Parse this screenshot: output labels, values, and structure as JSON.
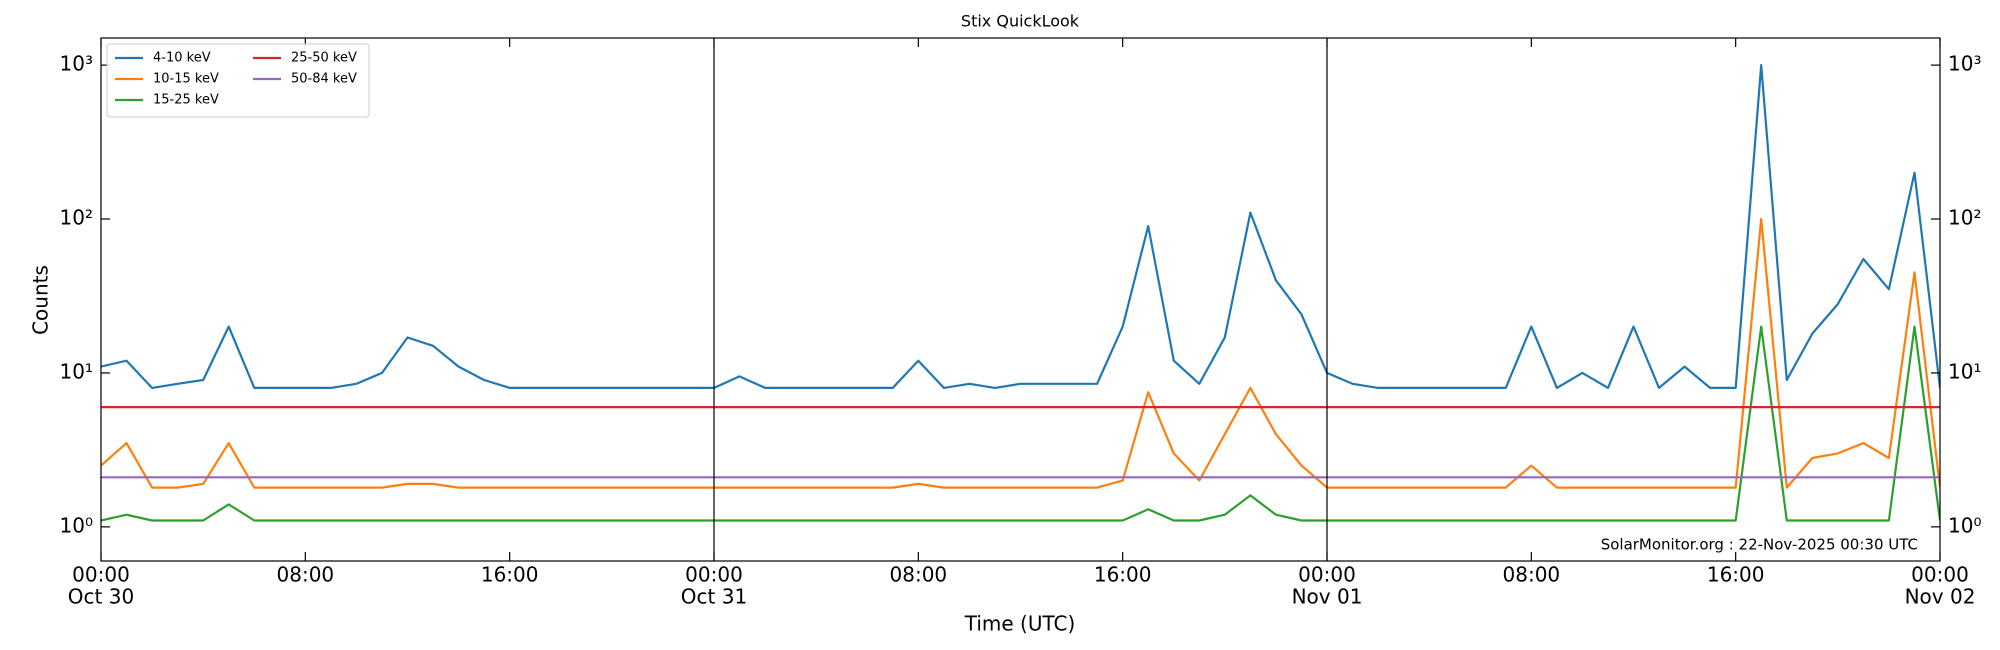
{
  "chart_data": {
    "type": "line",
    "title": "Stix QuickLook",
    "xlabel": "Time (UTC)",
    "ylabel": "Counts",
    "annotation": "SolarMonitor.org : 22-Nov-2025 00:30 UTC",
    "log_y": true,
    "grid": false,
    "legend_loc": "upper-left",
    "xlim": [
      0,
      72
    ],
    "ylim": [
      0.6,
      1500
    ],
    "xticks": [
      {
        "value": 0,
        "label": "00:00"
      },
      {
        "value": 8,
        "label": "08:00"
      },
      {
        "value": 16,
        "label": "16:00"
      },
      {
        "value": 24,
        "label": "00:00"
      },
      {
        "value": 32,
        "label": "08:00"
      },
      {
        "value": 40,
        "label": "16:00"
      },
      {
        "value": 48,
        "label": "00:00"
      },
      {
        "value": 56,
        "label": "08:00"
      },
      {
        "value": 64,
        "label": "16:00"
      },
      {
        "value": 72,
        "label": "00:00"
      }
    ],
    "xtick_dates": [
      {
        "value": 0,
        "label": "Oct 30"
      },
      {
        "value": 24,
        "label": "Oct 31"
      },
      {
        "value": 48,
        "label": "Nov 01"
      },
      {
        "value": 72,
        "label": "Nov 02"
      }
    ],
    "day_lines": [
      24,
      48
    ],
    "yticks": [
      {
        "value": 1,
        "label": "10⁰"
      },
      {
        "value": 10,
        "label": "10¹"
      },
      {
        "value": 100,
        "label": "10²"
      },
      {
        "value": 1000,
        "label": "10³"
      }
    ],
    "x": [
      0,
      1,
      2,
      3,
      4,
      5,
      6,
      7,
      8,
      9,
      10,
      11,
      12,
      13,
      14,
      15,
      16,
      17,
      18,
      19,
      20,
      21,
      22,
      23,
      24,
      25,
      26,
      27,
      28,
      29,
      30,
      31,
      32,
      33,
      34,
      35,
      36,
      37,
      38,
      39,
      40,
      41,
      42,
      43,
      44,
      45,
      46,
      47,
      48,
      49,
      50,
      51,
      52,
      53,
      54,
      55,
      56,
      57,
      58,
      59,
      60,
      61,
      62,
      63,
      64,
      65,
      66,
      67,
      68,
      69,
      70,
      71,
      72
    ],
    "series": [
      {
        "name": "4-10 keV",
        "color": "#1f77b4",
        "values": [
          11,
          12,
          8,
          8.5,
          9,
          20,
          8,
          8,
          8,
          8,
          8.5,
          10,
          17,
          15,
          11,
          9,
          8,
          8,
          8,
          8,
          8,
          8,
          8,
          8,
          8,
          9.5,
          8,
          8,
          8,
          8,
          8,
          8,
          12,
          8,
          8.5,
          8,
          8.5,
          8.5,
          8.5,
          8.5,
          20,
          90,
          12,
          8.5,
          17,
          110,
          40,
          24,
          10,
          8.5,
          8,
          8,
          8,
          8,
          8,
          8,
          20,
          8,
          10,
          8,
          20,
          8,
          11,
          8,
          8,
          1000,
          9,
          18,
          28,
          55,
          35,
          200,
          8
        ]
      },
      {
        "name": "10-15 keV",
        "color": "#ff7f0e",
        "values": [
          2.5,
          3.5,
          1.8,
          1.8,
          1.9,
          3.5,
          1.8,
          1.8,
          1.8,
          1.8,
          1.8,
          1.8,
          1.9,
          1.9,
          1.8,
          1.8,
          1.8,
          1.8,
          1.8,
          1.8,
          1.8,
          1.8,
          1.8,
          1.8,
          1.8,
          1.8,
          1.8,
          1.8,
          1.8,
          1.8,
          1.8,
          1.8,
          1.9,
          1.8,
          1.8,
          1.8,
          1.8,
          1.8,
          1.8,
          1.8,
          2,
          7.5,
          3,
          2,
          4,
          8,
          4,
          2.5,
          1.8,
          1.8,
          1.8,
          1.8,
          1.8,
          1.8,
          1.8,
          1.8,
          2.5,
          1.8,
          1.8,
          1.8,
          1.8,
          1.8,
          1.8,
          1.8,
          1.8,
          100,
          1.8,
          2.8,
          3,
          3.5,
          2.8,
          45,
          1.8
        ]
      },
      {
        "name": "15-25 keV",
        "color": "#2ca02c",
        "values": [
          1.1,
          1.2,
          1.1,
          1.1,
          1.1,
          1.4,
          1.1,
          1.1,
          1.1,
          1.1,
          1.1,
          1.1,
          1.1,
          1.1,
          1.1,
          1.1,
          1.1,
          1.1,
          1.1,
          1.1,
          1.1,
          1.1,
          1.1,
          1.1,
          1.1,
          1.1,
          1.1,
          1.1,
          1.1,
          1.1,
          1.1,
          1.1,
          1.1,
          1.1,
          1.1,
          1.1,
          1.1,
          1.1,
          1.1,
          1.1,
          1.1,
          1.3,
          1.1,
          1.1,
          1.2,
          1.6,
          1.2,
          1.1,
          1.1,
          1.1,
          1.1,
          1.1,
          1.1,
          1.1,
          1.1,
          1.1,
          1.1,
          1.1,
          1.1,
          1.1,
          1.1,
          1.1,
          1.1,
          1.1,
          1.1,
          20,
          1.1,
          1.1,
          1.1,
          1.1,
          1.1,
          20,
          1.1
        ]
      },
      {
        "name": "25-50 keV",
        "color": "#d62728",
        "values": [
          6,
          6,
          6,
          6,
          6,
          6,
          6,
          6,
          6,
          6,
          6,
          6,
          6,
          6,
          6,
          6,
          6,
          6,
          6,
          6,
          6,
          6,
          6,
          6,
          6,
          6,
          6,
          6,
          6,
          6,
          6,
          6,
          6,
          6,
          6,
          6,
          6,
          6,
          6,
          6,
          6,
          6,
          6,
          6,
          6,
          6,
          6,
          6,
          6,
          6,
          6,
          6,
          6,
          6,
          6,
          6,
          6,
          6,
          6,
          6,
          6,
          6,
          6,
          6,
          6,
          6,
          6,
          6,
          6,
          6,
          6,
          6,
          6
        ]
      },
      {
        "name": "50-84 keV",
        "color": "#9467bd",
        "values": [
          2.1,
          2.1,
          2.1,
          2.1,
          2.1,
          2.1,
          2.1,
          2.1,
          2.1,
          2.1,
          2.1,
          2.1,
          2.1,
          2.1,
          2.1,
          2.1,
          2.1,
          2.1,
          2.1,
          2.1,
          2.1,
          2.1,
          2.1,
          2.1,
          2.1,
          2.1,
          2.1,
          2.1,
          2.1,
          2.1,
          2.1,
          2.1,
          2.1,
          2.1,
          2.1,
          2.1,
          2.1,
          2.1,
          2.1,
          2.1,
          2.1,
          2.1,
          2.1,
          2.1,
          2.1,
          2.1,
          2.1,
          2.1,
          2.1,
          2.1,
          2.1,
          2.1,
          2.1,
          2.1,
          2.1,
          2.1,
          2.1,
          2.1,
          2.1,
          2.1,
          2.1,
          2.1,
          2.1,
          2.1,
          2.1,
          2.1,
          2.1,
          2.1,
          2.1,
          2.1,
          2.1,
          2.1,
          2.1
        ]
      }
    ]
  }
}
